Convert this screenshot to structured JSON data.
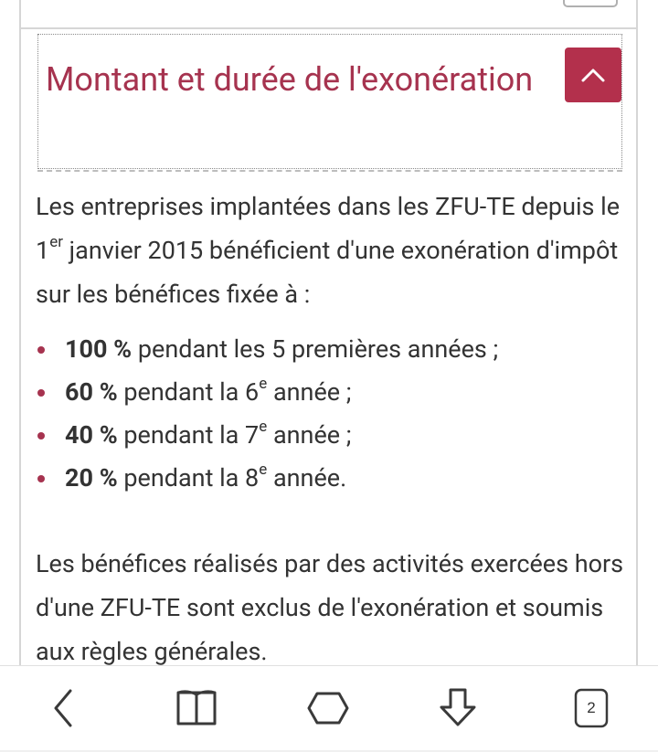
{
  "accordion": {
    "title": "Montant et durée de l'exonération",
    "toggle_icon": "chevron-up-icon",
    "accent_color": "#b3304c",
    "title_color": "#a6334f"
  },
  "content": {
    "intro": {
      "part1": "Les entreprises implantées dans les ZFU-TE depuis le 1",
      "sup": "er",
      "part2": " janvier 2015 bénéficient d'une exonération d'impôt sur les bénéfices fixée à :"
    },
    "list": [
      {
        "bold": "100 %",
        "text": " pendant les 5 premières années ;",
        "sup": "",
        "tail": ""
      },
      {
        "bold": "60 %",
        "text": " pendant la 6",
        "sup": "e",
        "tail": " année ;"
      },
      {
        "bold": "40 %",
        "text": " pendant la 7",
        "sup": "e",
        "tail": " année ;"
      },
      {
        "bold": "20 %",
        "text": " pendant la 8",
        "sup": "e",
        "tail": " année."
      }
    ],
    "paragraph2": "Les bénéfices réalisés par des activités exercées hors d'une ZFU-TE sont exclus de l'exonération et soumis aux règles générales."
  },
  "toolbar": {
    "back_icon": "chevron-left-icon",
    "bookmarks_icon": "book-icon",
    "home_icon": "home-icon",
    "download_icon": "download-arrow-icon",
    "tabs_icon": "tabs-icon",
    "tabs_count": "2"
  }
}
